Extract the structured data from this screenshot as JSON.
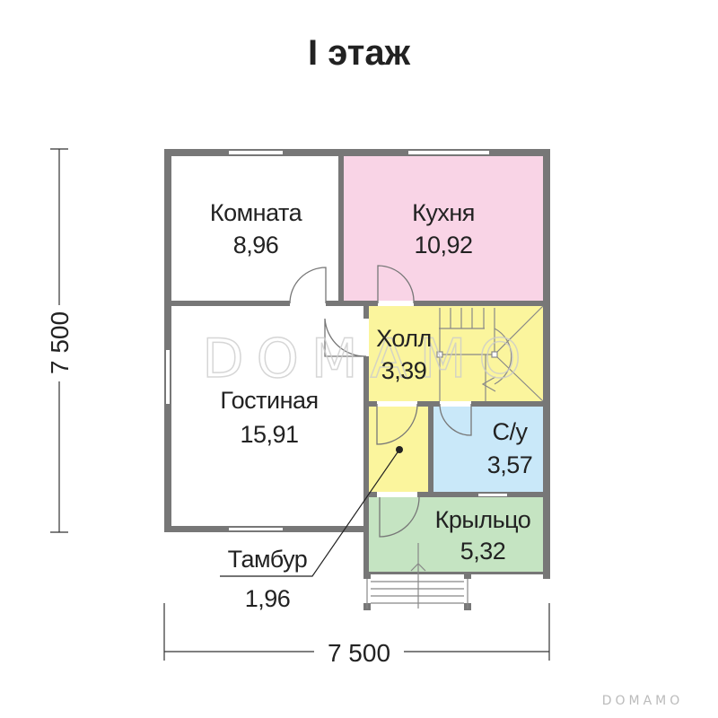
{
  "title": "I этаж",
  "dimensions": {
    "vertical": "7 500",
    "horizontal": "7 500"
  },
  "rooms": [
    {
      "name": "Комната",
      "area": "8,96",
      "color": "#ffffff"
    },
    {
      "name": "Кухня",
      "area": "10,92",
      "color": "#f9d4e6"
    },
    {
      "name": "Холл",
      "area": "3,39",
      "color": "#fbf59d"
    },
    {
      "name": "Гостиная",
      "area": "15,91",
      "color": "#ffffff"
    },
    {
      "name": "С/у",
      "area": "3,57",
      "color": "#c9e8f9"
    },
    {
      "name": "Крыльцо",
      "area": "5,32",
      "color": "#c5e4c2"
    },
    {
      "name": "Тамбур",
      "area": "1,96",
      "color": "#fbf59d"
    }
  ],
  "watermark": "DOMAMO",
  "wall_color": "#777777"
}
